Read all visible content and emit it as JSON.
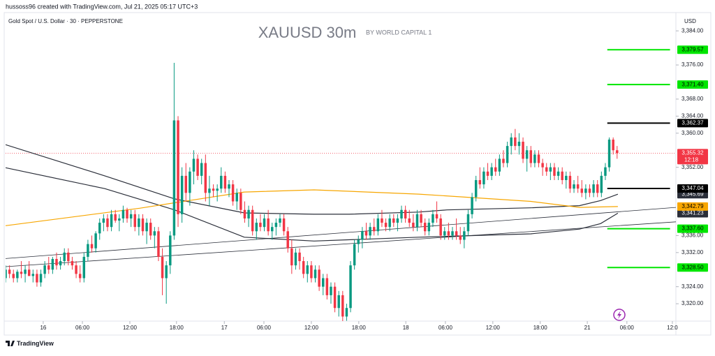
{
  "header": {
    "credit": "hussoss96 created with TradingView.com, Jul 21, 2025 05:17 UTC+3",
    "symbol": "Gold Spot / U.S. Dollar · 30 · PEPPERSTONE",
    "footer": "TradingView"
  },
  "chart_data": {
    "type": "candlestick",
    "title": "XAUUSD 30m",
    "subtitle": "BY WORLD CAPITAL 1",
    "currency": "USD",
    "up_color": "#089981",
    "down_color": "#f23645",
    "grid": false,
    "xlim": [
      0,
      171
    ],
    "ylim": [
      3315.6,
      3389.6
    ],
    "xticks": [
      {
        "value": 9.6,
        "label": "16"
      },
      {
        "value": 19.6,
        "label": "06:00"
      },
      {
        "value": 31.7,
        "label": "12:00"
      },
      {
        "value": 43.6,
        "label": "18:00"
      },
      {
        "value": 55.8,
        "label": "17"
      },
      {
        "value": 65.9,
        "label": "06:00"
      },
      {
        "value": 78,
        "label": "12:00"
      },
      {
        "value": 90.1,
        "label": "18:00"
      },
      {
        "value": 102.1,
        "label": "18"
      },
      {
        "value": 112.2,
        "label": "06:00"
      },
      {
        "value": 124.3,
        "label": "12:00"
      },
      {
        "value": 136.4,
        "label": "18:00"
      },
      {
        "value": 148.4,
        "label": "21"
      },
      {
        "value": 158.5,
        "label": "06:00"
      },
      {
        "value": 170.1,
        "label": "12:0"
      }
    ],
    "yticks": [
      {
        "value": 3384,
        "label": "3,384.00"
      },
      {
        "value": 3376,
        "label": "3,376.00"
      },
      {
        "value": 3368,
        "label": "3,368.00"
      },
      {
        "value": 3364,
        "label": "3,364.00"
      },
      {
        "value": 3360,
        "label": "3,360.00"
      },
      {
        "value": 3352,
        "label": "3,352.00"
      },
      {
        "value": 3336,
        "label": "3,336.00"
      },
      {
        "value": 3332,
        "label": "3,332.00"
      },
      {
        "value": 3324,
        "label": "3,324.00"
      },
      {
        "value": 3320,
        "label": "3,320.00"
      }
    ],
    "candles": [
      [
        3326,
        3329,
        3325,
        3328
      ],
      [
        3328,
        3329,
        3326,
        3327
      ],
      [
        3327,
        3328,
        3325,
        3326
      ],
      [
        3326,
        3328,
        3325,
        3327.5
      ],
      [
        3327.5,
        3330,
        3326,
        3327
      ],
      [
        3327,
        3329,
        3325,
        3328
      ],
      [
        3328,
        3330,
        3327,
        3326.5
      ],
      [
        3326.5,
        3328,
        3325,
        3327
      ],
      [
        3327,
        3328,
        3324,
        3325
      ],
      [
        3325,
        3328,
        3324,
        3327
      ],
      [
        3327,
        3330,
        3326,
        3329
      ],
      [
        3329,
        3331,
        3327,
        3328
      ],
      [
        3328,
        3331,
        3327,
        3330.5
      ],
      [
        3330.5,
        3332,
        3328,
        3329
      ],
      [
        3329,
        3331,
        3328,
        3330
      ],
      [
        3330,
        3333,
        3329,
        3332
      ],
      [
        3332,
        3333,
        3329,
        3330
      ],
      [
        3330,
        3331,
        3328,
        3329
      ],
      [
        3329,
        3330,
        3326,
        3327
      ],
      [
        3327,
        3329,
        3325,
        3326
      ],
      [
        3326,
        3332,
        3325,
        3331
      ],
      [
        3331,
        3335,
        3330,
        3334
      ],
      [
        3334,
        3336,
        3332,
        3333
      ],
      [
        3333,
        3337,
        3332,
        3336.5
      ],
      [
        3336.5,
        3340,
        3335,
        3339
      ],
      [
        3339,
        3341,
        3337,
        3340
      ],
      [
        3340,
        3341,
        3337,
        3338
      ],
      [
        3338,
        3342,
        3337,
        3341
      ],
      [
        3341,
        3342,
        3339,
        3339.5
      ],
      [
        3339.5,
        3341,
        3337,
        3340
      ],
      [
        3340,
        3343,
        3339,
        3342
      ],
      [
        3342,
        3342.5,
        3339,
        3340
      ],
      [
        3340,
        3342,
        3338,
        3341
      ],
      [
        3341,
        3342,
        3337,
        3338
      ],
      [
        3338,
        3341,
        3336,
        3340
      ],
      [
        3340,
        3341,
        3336,
        3337
      ],
      [
        3337,
        3340,
        3334,
        3339
      ],
      [
        3339,
        3340,
        3335,
        3336
      ],
      [
        3336,
        3338,
        3333,
        3337
      ],
      [
        3337,
        3338,
        3330,
        3331
      ],
      [
        3331,
        3333,
        3322,
        3326
      ],
      [
        3326,
        3330,
        3320,
        3329
      ],
      [
        3329,
        3337,
        3327,
        3336
      ],
      [
        3336,
        3376.5,
        3335,
        3363
      ],
      [
        3363,
        3364,
        3338,
        3341
      ],
      [
        3341,
        3352,
        3339,
        3350
      ],
      [
        3350,
        3353,
        3344,
        3346
      ],
      [
        3346,
        3352,
        3343,
        3351
      ],
      [
        3351,
        3356,
        3348,
        3354
      ],
      [
        3354,
        3355,
        3349,
        3350
      ],
      [
        3350,
        3354,
        3348,
        3353
      ],
      [
        3353,
        3355,
        3344,
        3346
      ],
      [
        3346,
        3350,
        3343,
        3347
      ],
      [
        3347,
        3348,
        3345,
        3346.5
      ],
      [
        3346.5,
        3348,
        3344,
        3347
      ],
      [
        3347,
        3352,
        3346,
        3350
      ],
      [
        3350,
        3351,
        3346,
        3347
      ],
      [
        3347,
        3349,
        3345,
        3348
      ],
      [
        3348,
        3349,
        3343,
        3344
      ],
      [
        3344,
        3347,
        3342,
        3346
      ],
      [
        3346,
        3347,
        3341,
        3342
      ],
      [
        3342,
        3344,
        3339,
        3340
      ],
      [
        3340,
        3343,
        3338,
        3342
      ],
      [
        3342,
        3343,
        3336,
        3337
      ],
      [
        3337,
        3340,
        3335,
        3339
      ],
      [
        3339,
        3341,
        3337,
        3338
      ],
      [
        3338,
        3341,
        3337,
        3340
      ],
      [
        3340,
        3342,
        3336,
        3337
      ],
      [
        3337,
        3339,
        3335,
        3338
      ],
      [
        3338,
        3340,
        3336,
        3339
      ],
      [
        3339,
        3341,
        3338,
        3340
      ],
      [
        3340,
        3341,
        3336,
        3337
      ],
      [
        3337,
        3338,
        3332,
        3333
      ],
      [
        3333,
        3335,
        3327,
        3329
      ],
      [
        3329,
        3333,
        3328,
        3332
      ],
      [
        3332,
        3333,
        3328,
        3330
      ],
      [
        3330,
        3331,
        3326,
        3327
      ],
      [
        3327,
        3330,
        3325,
        3329
      ],
      [
        3329,
        3330,
        3325,
        3326
      ],
      [
        3326,
        3329,
        3325,
        3328
      ],
      [
        3328,
        3329,
        3323,
        3324
      ],
      [
        3324,
        3327,
        3322,
        3326
      ],
      [
        3326,
        3327,
        3321,
        3322
      ],
      [
        3322,
        3325,
        3320,
        3324
      ],
      [
        3324,
        3325,
        3318,
        3319
      ],
      [
        3319,
        3323,
        3317,
        3322
      ],
      [
        3322,
        3323,
        3315.8,
        3317
      ],
      [
        3317,
        3320,
        3316,
        3319
      ],
      [
        3319,
        3330,
        3318,
        3329
      ],
      [
        3329,
        3335,
        3328,
        3334
      ],
      [
        3334,
        3336,
        3332,
        3335
      ],
      [
        3335,
        3338,
        3333,
        3337
      ],
      [
        3337,
        3339,
        3335,
        3336
      ],
      [
        3336,
        3339,
        3335,
        3338
      ],
      [
        3338,
        3340,
        3336,
        3337
      ],
      [
        3337,
        3341,
        3336,
        3340
      ],
      [
        3340,
        3342,
        3338,
        3339
      ],
      [
        3339,
        3340,
        3337,
        3338
      ],
      [
        3338,
        3341,
        3337,
        3340
      ],
      [
        3340,
        3341,
        3338,
        3339
      ],
      [
        3339,
        3341,
        3337,
        3340
      ],
      [
        3340,
        3343,
        3339,
        3342
      ],
      [
        3342,
        3343,
        3339,
        3340
      ],
      [
        3340,
        3342,
        3338,
        3339
      ],
      [
        3339,
        3341,
        3337,
        3338
      ],
      [
        3338,
        3342,
        3337,
        3341
      ],
      [
        3341,
        3342,
        3338,
        3339
      ],
      [
        3339,
        3340,
        3336,
        3337
      ],
      [
        3337,
        3340,
        3336,
        3339
      ],
      [
        3339,
        3342,
        3338,
        3341
      ],
      [
        3341,
        3344,
        3339,
        3340
      ],
      [
        3340,
        3341,
        3335,
        3336
      ],
      [
        3336,
        3338,
        3335,
        3337
      ],
      [
        3337,
        3339,
        3335,
        3336
      ],
      [
        3336,
        3338,
        3335,
        3337
      ],
      [
        3337,
        3340,
        3335,
        3336
      ],
      [
        3336,
        3338,
        3334,
        3335
      ],
      [
        3335,
        3338,
        3333,
        3337
      ],
      [
        3337,
        3342,
        3336,
        3341
      ],
      [
        3341,
        3346,
        3340,
        3345
      ],
      [
        3345,
        3350,
        3344,
        3349
      ],
      [
        3349,
        3352,
        3347,
        3348
      ],
      [
        3348,
        3352,
        3347,
        3351
      ],
      [
        3351,
        3353,
        3349,
        3350
      ],
      [
        3350,
        3353,
        3349,
        3352
      ],
      [
        3352,
        3354,
        3350,
        3351
      ],
      [
        3351,
        3355,
        3350,
        3354
      ],
      [
        3354,
        3356,
        3352,
        3353
      ],
      [
        3353,
        3358,
        3352,
        3357
      ],
      [
        3357,
        3360,
        3355,
        3359
      ],
      [
        3359,
        3361,
        3356,
        3357
      ],
      [
        3357,
        3360,
        3355,
        3358
      ],
      [
        3358,
        3359,
        3353,
        3354
      ],
      [
        3354,
        3357,
        3351,
        3356
      ],
      [
        3356,
        3357,
        3352,
        3353
      ],
      [
        3353,
        3356,
        3352,
        3355
      ],
      [
        3355,
        3356,
        3352,
        3353
      ],
      [
        3353,
        3354,
        3350,
        3352
      ],
      [
        3352,
        3353,
        3350,
        3351
      ],
      [
        3351,
        3353,
        3349,
        3352
      ],
      [
        3352,
        3353,
        3349,
        3350
      ],
      [
        3350,
        3352,
        3349,
        3351
      ],
      [
        3351,
        3352,
        3348,
        3349
      ],
      [
        3349,
        3351,
        3347,
        3350
      ],
      [
        3350,
        3351,
        3346,
        3347
      ],
      [
        3347,
        3349,
        3346,
        3348
      ],
      [
        3348,
        3350,
        3346,
        3347
      ],
      [
        3347,
        3349,
        3345,
        3346
      ],
      [
        3346,
        3348,
        3344.5,
        3347
      ],
      [
        3347,
        3348,
        3345,
        3346
      ],
      [
        3346,
        3349,
        3345,
        3348
      ],
      [
        3348,
        3349,
        3345,
        3346
      ],
      [
        3346,
        3351,
        3345,
        3350
      ],
      [
        3350,
        3353,
        3349,
        3352
      ],
      [
        3352,
        3359,
        3351,
        3358.5
      ],
      [
        3358.5,
        3359,
        3355,
        3356
      ],
      [
        3356,
        3357,
        3354,
        3355.32
      ]
    ],
    "lines": [
      {
        "color": "#2a2e39",
        "x": [
          0,
          25.3,
          43.1,
          60.9,
          78.7,
          87.6,
          105.4,
          112.6,
          134,
          146.4,
          151.8,
          156.2
        ],
        "values": [
          3357.3,
          3350,
          3344.6,
          3341.3,
          3341,
          3341,
          3341.5,
          3342,
          3342.5,
          3343,
          3344.2,
          3345.69
        ],
        "label": "3,345.69"
      },
      {
        "color": "#2a2e39",
        "x": [
          0,
          25.3,
          43.1,
          60.9,
          78.7,
          105.4,
          134,
          146.4,
          151.8,
          156.2
        ],
        "values": [
          3351.9,
          3347,
          3342,
          3335.6,
          3334.7,
          3335.6,
          3336.4,
          3337.5,
          3338.8,
          3341.23
        ],
        "label": "3,341.23"
      },
      {
        "color": "#f7a600",
        "x": [
          0,
          34.2,
          60.9,
          78.7,
          105.4,
          134,
          146.4,
          156.2
        ],
        "values": [
          3338.3,
          3342.4,
          3346.2,
          3346.7,
          3345.7,
          3344,
          3342.6,
          3342.79
        ],
        "label": "3,342.79"
      },
      {
        "color": "#2a2e39",
        "x": [
          0,
          171
        ],
        "values": [
          3330.6,
          3342.6
        ]
      },
      {
        "color": "#2a2e39",
        "x": [
          0,
          171
        ],
        "values": [
          3328.7,
          3339.2
        ]
      }
    ],
    "levels_x": [
      153.5,
      169.5
    ],
    "levels": [
      {
        "value": 3379.57,
        "label": "3,379.57",
        "color": "#00e600"
      },
      {
        "value": 3371.4,
        "label": "3,371.40",
        "color": "#00e600"
      },
      {
        "value": 3362.37,
        "label": "3,362.37",
        "color": "#000000"
      },
      {
        "value": 3347.04,
        "label": "3,347.04",
        "color": "#000000"
      },
      {
        "value": 3337.6,
        "label": "3,337.60",
        "color": "#00e600"
      },
      {
        "value": 3328.5,
        "label": "3,328.50",
        "color": "#00e600"
      }
    ],
    "last": {
      "value": 3355.32,
      "label": "3,355.32",
      "countdown": "12:18",
      "color": "#f23645"
    }
  }
}
